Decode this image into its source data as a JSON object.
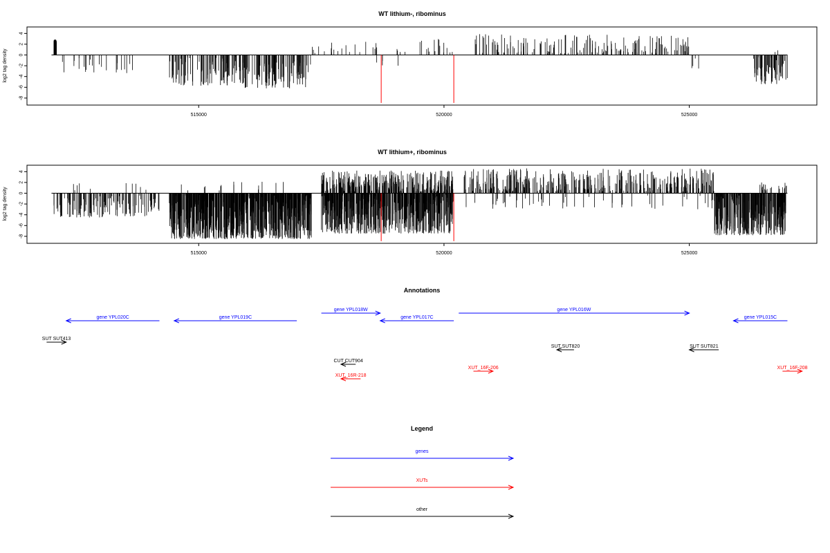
{
  "chart_data": [
    {
      "type": "bar",
      "title": "WT lithium-, ribominus",
      "ylabel": "log2 tag density",
      "xlim": [
        511500,
        527600
      ],
      "ylim": [
        -9.3,
        5.2
      ],
      "xticks": [
        515000,
        520000,
        525000
      ],
      "xtick_labels": [
        "515000",
        "520000",
        "525000"
      ],
      "yticks": [
        4,
        2,
        0,
        -2,
        -4,
        -6,
        -8
      ],
      "ytick_labels": [
        "4",
        "2",
        "0",
        "-2",
        "-4",
        "-6",
        "-8"
      ],
      "baseline_range": [
        512000,
        527000
      ],
      "highlight_color": "#ff0000",
      "bar_color": "#000000",
      "highlights": [
        {
          "x": 518720,
          "value": -8.9
        },
        {
          "x": 520200,
          "value": -8.9
        }
      ],
      "regions": [
        {
          "start": 512050,
          "end": 512100,
          "density": 1.0,
          "min": 2.4,
          "max": 2.9,
          "seed": 11
        },
        {
          "start": 512200,
          "end": 513700,
          "density": 0.016,
          "min": -3.4,
          "max": -0.4,
          "seed": 12
        },
        {
          "start": 514400,
          "end": 515600,
          "density": 0.07,
          "min": -5.7,
          "max": -0.3,
          "seed": 13
        },
        {
          "start": 515600,
          "end": 517300,
          "density": 0.075,
          "min": -6.2,
          "max": -0.3,
          "seed": 14
        },
        {
          "start": 517300,
          "end": 520200,
          "density": 0.014,
          "min": 0.3,
          "max": 3.0,
          "seed": 15
        },
        {
          "start": 518600,
          "end": 519200,
          "density": 0.006,
          "min": -2.3,
          "max": -0.5,
          "seed": 16
        },
        {
          "start": 520600,
          "end": 525000,
          "density": 0.038,
          "min": 0.3,
          "max": 3.9,
          "seed": 17
        },
        {
          "start": 525000,
          "end": 525500,
          "density": 0.008,
          "min": -2.6,
          "max": -0.4,
          "seed": 18
        },
        {
          "start": 526300,
          "end": 527000,
          "density": 0.09,
          "min": -5.4,
          "max": -0.3,
          "seed": 19
        },
        {
          "start": 526700,
          "end": 526900,
          "density": 0.01,
          "min": 0.5,
          "max": 1.7,
          "seed": 20
        }
      ]
    },
    {
      "type": "bar",
      "title": "WT lithium+, ribominus",
      "ylabel": "log2 tag density",
      "xlim": [
        511500,
        527600
      ],
      "ylim": [
        -9.3,
        5.2
      ],
      "xticks": [
        515000,
        520000,
        525000
      ],
      "xtick_labels": [
        "515000",
        "520000",
        "525000"
      ],
      "yticks": [
        4,
        2,
        0,
        -2,
        -4,
        -6,
        -8
      ],
      "ytick_labels": [
        "4",
        "2",
        "0",
        "-2",
        "-4",
        "-6",
        "-8"
      ],
      "baseline_range": [
        512000,
        527000
      ],
      "highlight_color": "#ff0000",
      "bar_color": "#000000",
      "highlights": [
        {
          "x": 518720,
          "value": -8.9
        },
        {
          "x": 520200,
          "value": -8.9
        }
      ],
      "regions": [
        {
          "start": 512050,
          "end": 514200,
          "density": 0.06,
          "min": -4.5,
          "max": -0.3,
          "seed": 21
        },
        {
          "start": 512400,
          "end": 514000,
          "density": 0.006,
          "min": 0.5,
          "max": 2.2,
          "seed": 22
        },
        {
          "start": 514400,
          "end": 517300,
          "density": 0.25,
          "min": -8.5,
          "max": -0.3,
          "seed": 23
        },
        {
          "start": 514500,
          "end": 517000,
          "density": 0.006,
          "min": 0.5,
          "max": 2.2,
          "seed": 24
        },
        {
          "start": 517500,
          "end": 520200,
          "density": 0.2,
          "min": -7.5,
          "max": -0.3,
          "seed": 25
        },
        {
          "start": 517500,
          "end": 520200,
          "density": 0.12,
          "min": 0.3,
          "max": 4.2,
          "seed": 26
        },
        {
          "start": 520400,
          "end": 525500,
          "density": 0.075,
          "min": 0.3,
          "max": 4.6,
          "seed": 27
        },
        {
          "start": 520400,
          "end": 525500,
          "density": 0.01,
          "min": -3.0,
          "max": -0.4,
          "seed": 28
        },
        {
          "start": 525500,
          "end": 527000,
          "density": 0.2,
          "min": -7.8,
          "max": -0.3,
          "seed": 29
        },
        {
          "start": 526300,
          "end": 527000,
          "density": 0.03,
          "min": 0.5,
          "max": 2.0,
          "seed": 30
        }
      ]
    }
  ],
  "annotations": {
    "title": "Annotations",
    "items": [
      {
        "label": "gene YPL020C",
        "start": 514200,
        "end": 512300,
        "row": 1,
        "color": "#0000ff"
      },
      {
        "label": "gene YPL019C",
        "start": 517000,
        "end": 514500,
        "row": 1,
        "color": "#0000ff"
      },
      {
        "label": "gene YPL018W",
        "start": 517500,
        "end": 518700,
        "row": 0,
        "color": "#0000ff"
      },
      {
        "label": "gene YPL017C",
        "start": 520200,
        "end": 518700,
        "row": 1,
        "color": "#0000ff"
      },
      {
        "label": "gene YPL016W",
        "start": 520300,
        "end": 525000,
        "row": 0,
        "color": "#0000ff"
      },
      {
        "label": "gene YPL015C",
        "start": 527000,
        "end": 525900,
        "row": 1,
        "color": "#0000ff"
      },
      {
        "label": "SUT SUT413",
        "start": 511900,
        "end": 512300,
        "row": 2,
        "color": "#000000"
      },
      {
        "label": "SUT SUT820",
        "start": 522650,
        "end": 522300,
        "row": 3,
        "color": "#000000"
      },
      {
        "label": "SUT SUT821",
        "start": 525600,
        "end": 525000,
        "row": 3,
        "color": "#000000"
      },
      {
        "label": "CUT CUT904",
        "start": 518200,
        "end": 517900,
        "row": 4,
        "color": "#000000"
      },
      {
        "label": "XUT_16R-218",
        "start": 518300,
        "end": 517900,
        "row": 6,
        "color": "#ff0000"
      },
      {
        "label": "XUT_16F-206",
        "start": 520600,
        "end": 521000,
        "row": 5,
        "color": "#ff0000"
      },
      {
        "label": "XUT_16F-208",
        "start": 526900,
        "end": 527300,
        "row": 5,
        "color": "#ff0000"
      }
    ]
  },
  "legend": {
    "title": "Legend",
    "items": [
      {
        "label": "genes",
        "color": "#0000ff"
      },
      {
        "label": "XUTs",
        "color": "#ff0000"
      },
      {
        "label": "other",
        "color": "#000000"
      }
    ]
  }
}
